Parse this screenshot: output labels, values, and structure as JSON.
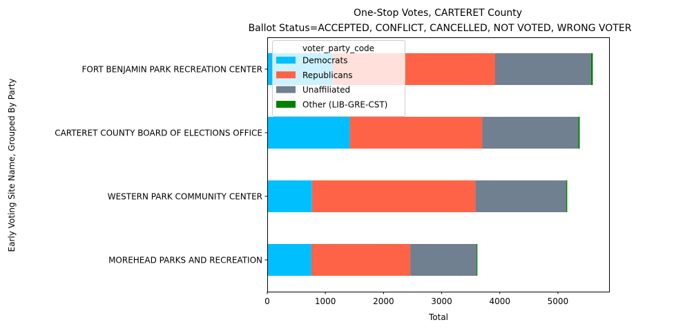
{
  "chart_data": {
    "type": "bar",
    "orientation": "horizontal",
    "stacked": true,
    "title": "One-Stop Votes, CARTERET County",
    "subtitle": "Ballot Status=ACCEPTED, CONFLICT, CANCELLED, NOT VOTED, WRONG VOTER",
    "xlabel": "Total",
    "ylabel": "Early Voting Site Name, Grouped By Party",
    "xlim": [
      0,
      5880
    ],
    "xticks": [
      0,
      1000,
      2000,
      3000,
      4000,
      5000
    ],
    "xtick_labels": [
      "0",
      "1000",
      "2000",
      "3000",
      "4000",
      "5000"
    ],
    "grid": false,
    "legend_title": "voter_party_code",
    "legend_position": "upper-left",
    "categories": [
      "FORT BENJAMIN PARK RECREATION CENTER",
      "CARTERET COUNTY BOARD OF ELECTIONS OFFICE",
      "WESTERN PARK COMMUNITY CENTER",
      "MOREHEAD PARKS AND RECREATION"
    ],
    "series": [
      {
        "name": "Democrats",
        "color": "#00bfff",
        "values": [
          1130,
          1420,
          770,
          760
        ]
      },
      {
        "name": "Republicans",
        "color": "#ff6347",
        "values": [
          2790,
          2280,
          2810,
          1700
        ]
      },
      {
        "name": "Unaffiliated",
        "color": "#708090",
        "values": [
          1650,
          1650,
          1560,
          1140
        ]
      },
      {
        "name": "Other (LIB-GRE-CST)",
        "color": "#008000",
        "values": [
          30,
          25,
          20,
          15
        ]
      }
    ]
  }
}
